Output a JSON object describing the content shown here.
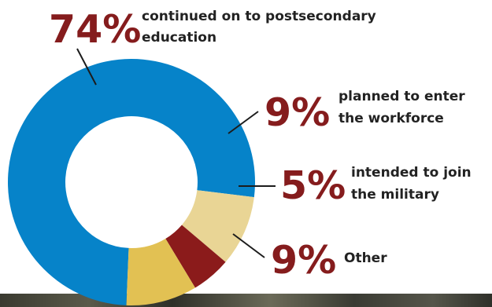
{
  "chart_data": {
    "type": "pie",
    "categories": [
      "continued on to postsecondary education",
      "planned to enter the workforce",
      "intended to join the military",
      "Other"
    ],
    "values": [
      74,
      9,
      5,
      9
    ],
    "colors": [
      "#0683c9",
      "#e9d595",
      "#8b1b1b",
      "#e2c153"
    ],
    "value_labels": [
      "74%",
      "9%",
      "5%",
      "9%"
    ],
    "label_lines": [
      [
        "continued on to postsecondary",
        "education"
      ],
      [
        "planned to enter",
        "the workforce"
      ],
      [
        "intended to join",
        "the military"
      ],
      [
        "Other"
      ]
    ],
    "title": "",
    "donut": true
  }
}
